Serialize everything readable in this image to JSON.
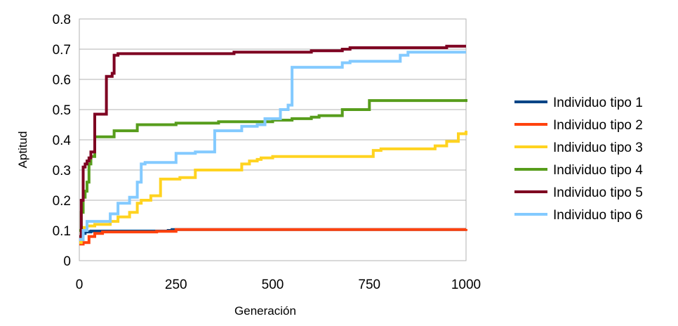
{
  "chart_data": {
    "type": "line",
    "title": "",
    "xlabel": "Generación",
    "ylabel": "Aptitud",
    "xlim": [
      0,
      1000
    ],
    "ylim": [
      0,
      0.8
    ],
    "xticks": [
      "0",
      "250",
      "500",
      "750",
      "1000"
    ],
    "yticks": [
      "0",
      "0.1",
      "0.2",
      "0.3",
      "0.4",
      "0.5",
      "0.6",
      "0.7",
      "0.8"
    ],
    "grid": "horizontal",
    "legend_position": "right",
    "series": [
      {
        "name": "Individuo tipo 1",
        "color": "#004586",
        "x": [
          0,
          5,
          10,
          15,
          30,
          230,
          240,
          1000
        ],
        "y": [
          0.06,
          0.07,
          0.09,
          0.095,
          0.098,
          0.1,
          0.103,
          0.103
        ]
      },
      {
        "name": "Individuo tipo 2",
        "color": "#ff420e",
        "x": [
          0,
          10,
          25,
          40,
          60,
          200,
          250,
          600,
          1000
        ],
        "y": [
          0.055,
          0.06,
          0.08,
          0.09,
          0.095,
          0.097,
          0.103,
          0.103,
          0.105
        ]
      },
      {
        "name": "Individuo tipo 3",
        "color": "#ffd320",
        "x": [
          0,
          5,
          10,
          20,
          40,
          80,
          100,
          130,
          150,
          160,
          185,
          210,
          260,
          300,
          420,
          440,
          460,
          470,
          500,
          550,
          760,
          780,
          920,
          950,
          980,
          1000
        ],
        "y": [
          0.06,
          0.09,
          0.11,
          0.115,
          0.12,
          0.13,
          0.145,
          0.16,
          0.19,
          0.2,
          0.215,
          0.27,
          0.275,
          0.3,
          0.32,
          0.33,
          0.335,
          0.34,
          0.345,
          0.345,
          0.365,
          0.37,
          0.38,
          0.395,
          0.42,
          0.43
        ]
      },
      {
        "name": "Individuo tipo 4",
        "color": "#579d1c",
        "x": [
          0,
          5,
          10,
          15,
          20,
          25,
          30,
          40,
          70,
          90,
          130,
          150,
          250,
          360,
          500,
          550,
          600,
          620,
          680,
          750,
          900,
          1000
        ],
        "y": [
          0.1,
          0.16,
          0.21,
          0.23,
          0.26,
          0.32,
          0.345,
          0.41,
          0.41,
          0.43,
          0.43,
          0.45,
          0.455,
          0.46,
          0.465,
          0.47,
          0.475,
          0.48,
          0.5,
          0.53,
          0.53,
          0.535
        ]
      },
      {
        "name": "Individuo tipo 5",
        "color": "#7e0021",
        "x": [
          0,
          5,
          10,
          15,
          20,
          25,
          30,
          40,
          70,
          85,
          90,
          100,
          350,
          400,
          600,
          650,
          680,
          700,
          850,
          950,
          1000
        ],
        "y": [
          0.08,
          0.2,
          0.31,
          0.32,
          0.33,
          0.34,
          0.36,
          0.485,
          0.61,
          0.62,
          0.68,
          0.685,
          0.685,
          0.69,
          0.695,
          0.695,
          0.7,
          0.705,
          0.705,
          0.71,
          0.71
        ]
      },
      {
        "name": "Individuo tipo 6",
        "color": "#83caff",
        "x": [
          0,
          10,
          20,
          80,
          100,
          130,
          150,
          160,
          170,
          230,
          250,
          300,
          350,
          420,
          460,
          480,
          520,
          540,
          550,
          600,
          680,
          700,
          830,
          850,
          1000
        ],
        "y": [
          0.07,
          0.1,
          0.13,
          0.155,
          0.19,
          0.21,
          0.26,
          0.32,
          0.325,
          0.325,
          0.355,
          0.36,
          0.43,
          0.445,
          0.45,
          0.47,
          0.5,
          0.515,
          0.64,
          0.64,
          0.655,
          0.66,
          0.68,
          0.69,
          0.69
        ]
      }
    ]
  }
}
